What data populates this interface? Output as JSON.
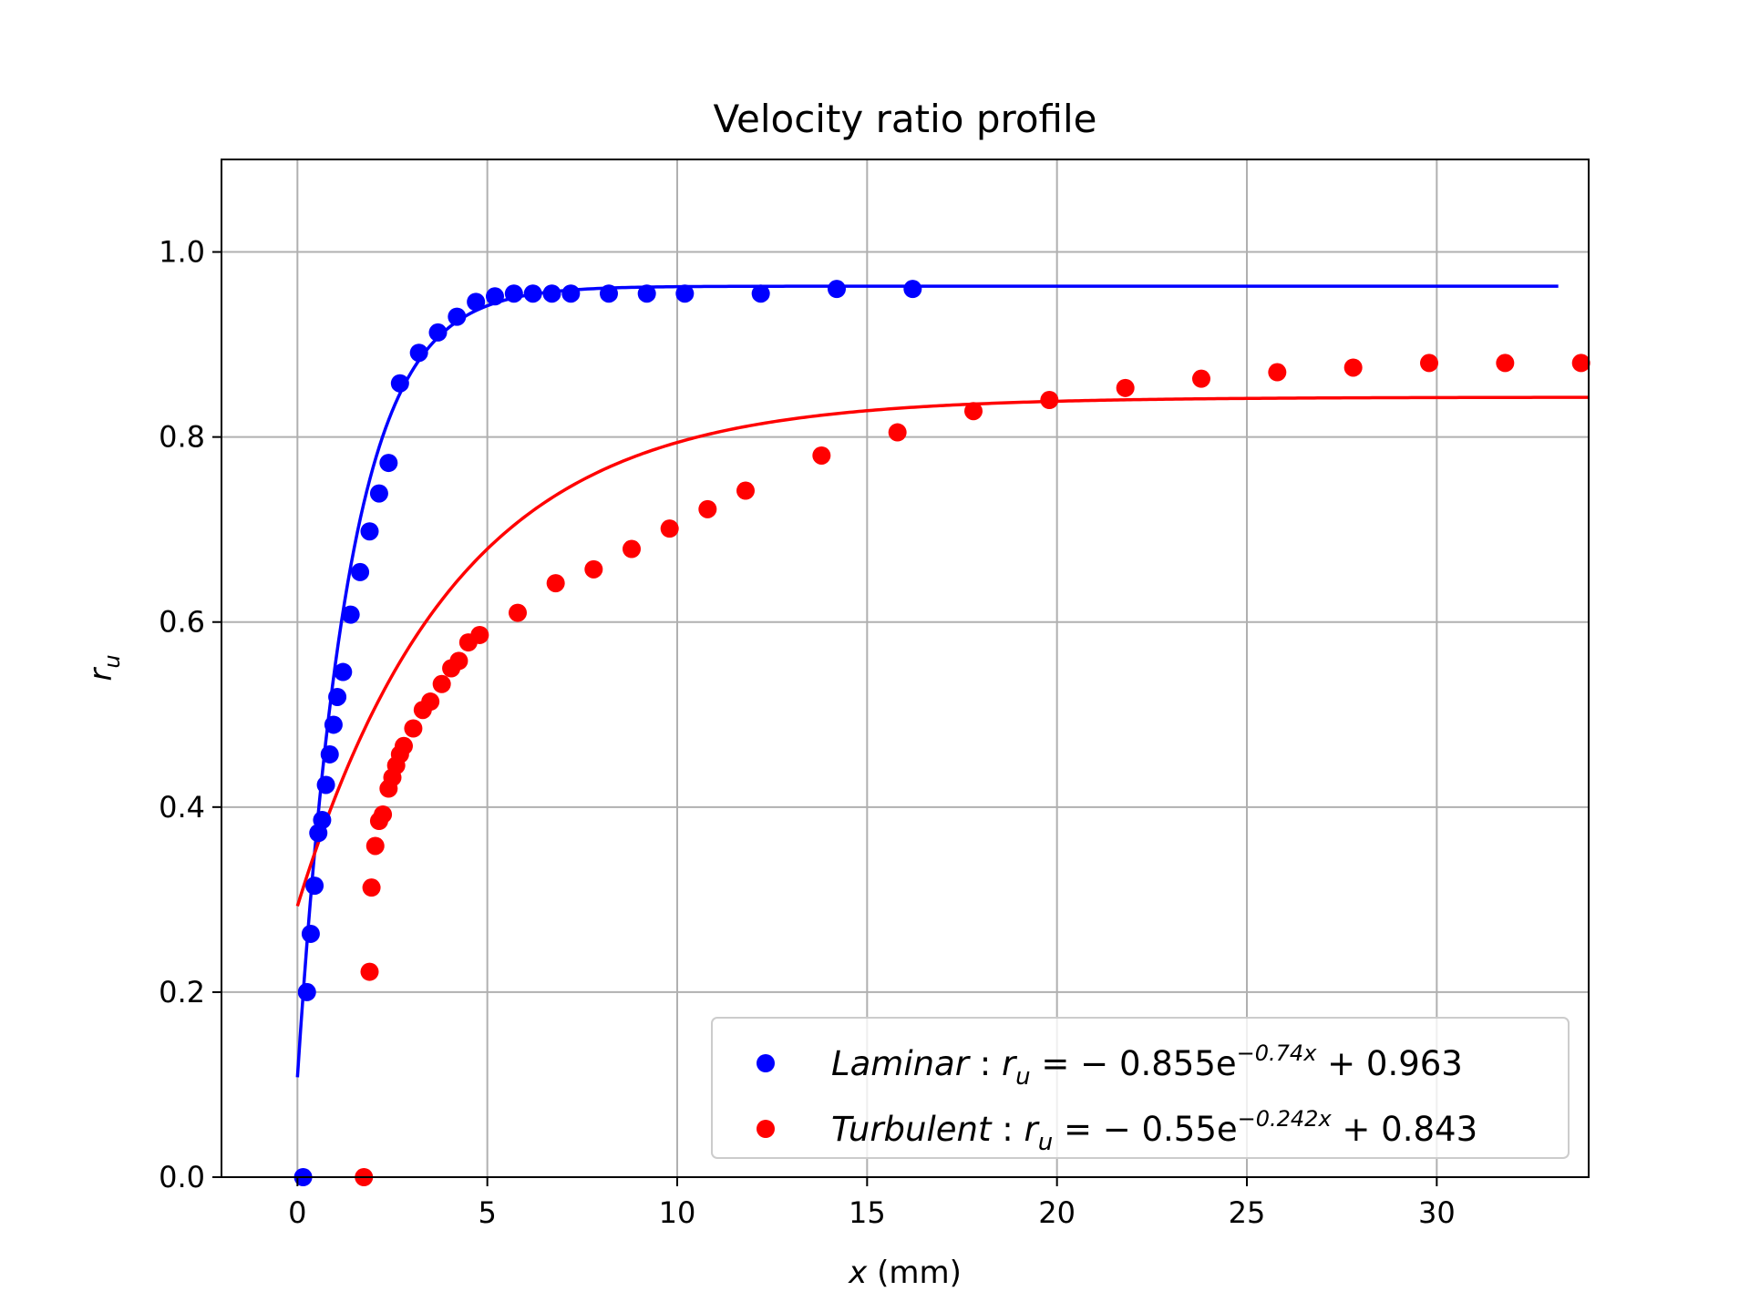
{
  "chart_data": {
    "type": "scatter",
    "title": "Velocity ratio profile",
    "xlabel": "x (mm)",
    "ylabel": "r_u",
    "xlim": [
      -2,
      34
    ],
    "ylim": [
      0,
      1.1
    ],
    "xticks": [
      0,
      5,
      10,
      15,
      20,
      25,
      30
    ],
    "yticks": [
      0.0,
      0.2,
      0.4,
      0.6,
      0.8,
      1.0
    ],
    "xtick_labels": [
      "0",
      "5",
      "10",
      "15",
      "20",
      "25",
      "30"
    ],
    "ytick_labels": [
      "0.0",
      "0.2",
      "0.4",
      "0.6",
      "0.8",
      "1.0"
    ],
    "grid": true,
    "legend_position": "bottom-right",
    "series": [
      {
        "name": "Laminar",
        "color": "#0000ff",
        "label_parts": {
          "name": "Laminar",
          "lhs": "r",
          "lhs_sub": "u",
          "coef": " = − 0.855e",
          "exp": "−0.74x",
          "tail": " + 0.963"
        },
        "fit": {
          "a": -0.855,
          "b": -0.74,
          "c": 0.963,
          "x_max": 33.2
        },
        "points": [
          [
            0.15,
            0.0
          ],
          [
            0.25,
            0.2
          ],
          [
            0.35,
            0.263
          ],
          [
            0.45,
            0.315
          ],
          [
            0.55,
            0.372
          ],
          [
            0.65,
            0.386
          ],
          [
            0.75,
            0.424
          ],
          [
            0.85,
            0.457
          ],
          [
            0.95,
            0.489
          ],
          [
            1.05,
            0.519
          ],
          [
            1.2,
            0.546
          ],
          [
            1.4,
            0.608
          ],
          [
            1.65,
            0.654
          ],
          [
            1.9,
            0.698
          ],
          [
            2.15,
            0.739
          ],
          [
            2.4,
            0.772
          ],
          [
            2.7,
            0.858
          ],
          [
            3.2,
            0.891
          ],
          [
            3.7,
            0.913
          ],
          [
            4.2,
            0.93
          ],
          [
            4.7,
            0.946
          ],
          [
            5.2,
            0.952
          ],
          [
            5.7,
            0.955
          ],
          [
            6.2,
            0.955
          ],
          [
            6.7,
            0.955
          ],
          [
            7.2,
            0.955
          ],
          [
            8.2,
            0.955
          ],
          [
            9.2,
            0.955
          ],
          [
            10.2,
            0.955
          ],
          [
            12.2,
            0.955
          ],
          [
            14.2,
            0.96
          ],
          [
            16.2,
            0.96
          ]
        ]
      },
      {
        "name": "Turbulent",
        "color": "#ff0000",
        "label_parts": {
          "name": "Turbulent",
          "lhs": "r",
          "lhs_sub": "u",
          "coef": " = − 0.55e",
          "exp": "−0.242x",
          "tail": " + 0.843"
        },
        "fit": {
          "a": -0.55,
          "b": -0.242,
          "c": 0.843,
          "x_max": 34
        },
        "points": [
          [
            1.75,
            0.0
          ],
          [
            1.9,
            0.222
          ],
          [
            1.95,
            0.313
          ],
          [
            2.05,
            0.358
          ],
          [
            2.15,
            0.385
          ],
          [
            2.25,
            0.392
          ],
          [
            2.4,
            0.42
          ],
          [
            2.5,
            0.432
          ],
          [
            2.6,
            0.445
          ],
          [
            2.7,
            0.457
          ],
          [
            2.8,
            0.466
          ],
          [
            3.05,
            0.485
          ],
          [
            3.3,
            0.505
          ],
          [
            3.5,
            0.514
          ],
          [
            3.8,
            0.533
          ],
          [
            4.05,
            0.55
          ],
          [
            4.25,
            0.558
          ],
          [
            4.5,
            0.578
          ],
          [
            4.8,
            0.586
          ],
          [
            5.8,
            0.61
          ],
          [
            6.8,
            0.642
          ],
          [
            7.8,
            0.657
          ],
          [
            8.8,
            0.679
          ],
          [
            9.8,
            0.701
          ],
          [
            10.8,
            0.722
          ],
          [
            11.8,
            0.742
          ],
          [
            13.8,
            0.78
          ],
          [
            15.8,
            0.805
          ],
          [
            17.8,
            0.828
          ],
          [
            19.8,
            0.84
          ],
          [
            21.8,
            0.853
          ],
          [
            23.8,
            0.863
          ],
          [
            25.8,
            0.87
          ],
          [
            27.8,
            0.875
          ],
          [
            29.8,
            0.88
          ],
          [
            31.8,
            0.88
          ],
          [
            33.8,
            0.88
          ]
        ]
      }
    ]
  }
}
